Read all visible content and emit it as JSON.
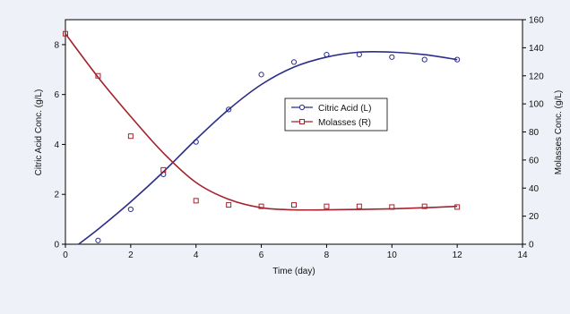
{
  "chart_data": {
    "type": "scatter",
    "title": "",
    "xlabel": "Time (day)",
    "ylabel_left": "Citric Acid Conc. (g/L)",
    "ylabel_right": "Molasses Conc. (g/L)",
    "xlim": [
      0,
      14
    ],
    "ylim_left": [
      0,
      9
    ],
    "ylim_right": [
      0,
      160
    ],
    "x_ticks": [
      0,
      2,
      4,
      6,
      8,
      10,
      12,
      14
    ],
    "y_ticks_left": [
      0,
      2,
      4,
      6,
      8
    ],
    "y_ticks_right": [
      0,
      20,
      40,
      60,
      80,
      100,
      120,
      140,
      160
    ],
    "grid": false,
    "legend_position": "center-right",
    "series": [
      {
        "name": "Citric Acid (L)",
        "axis": "left",
        "color": "#2b2d8a",
        "marker": "circle",
        "points": [
          [
            1,
            0.15
          ],
          [
            2,
            1.4
          ],
          [
            3,
            2.8
          ],
          [
            4,
            4.1
          ],
          [
            5,
            5.4
          ],
          [
            6,
            6.8
          ],
          [
            7,
            7.3
          ],
          [
            8,
            7.6
          ],
          [
            9,
            7.6
          ],
          [
            10,
            7.5
          ],
          [
            11,
            7.4
          ],
          [
            12,
            7.4
          ]
        ],
        "fit": [
          [
            0.4,
            0.0
          ],
          [
            1,
            0.6
          ],
          [
            2,
            1.7
          ],
          [
            3,
            2.9
          ],
          [
            4,
            4.2
          ],
          [
            5,
            5.4
          ],
          [
            6,
            6.4
          ],
          [
            7,
            7.1
          ],
          [
            8,
            7.5
          ],
          [
            9,
            7.7
          ],
          [
            10,
            7.7
          ],
          [
            11,
            7.6
          ],
          [
            12,
            7.4
          ]
        ]
      },
      {
        "name": "Molasses (R)",
        "axis": "right",
        "color": "#a3222c",
        "marker": "square",
        "points": [
          [
            0,
            150
          ],
          [
            1,
            120
          ],
          [
            2,
            77
          ],
          [
            3,
            53
          ],
          [
            4,
            31
          ],
          [
            5,
            28
          ],
          [
            6,
            27
          ],
          [
            7,
            28
          ],
          [
            8,
            27
          ],
          [
            9,
            27
          ],
          [
            10,
            26.5
          ],
          [
            11,
            27
          ],
          [
            12,
            26.5
          ]
        ],
        "fit": [
          [
            0,
            150
          ],
          [
            1,
            119
          ],
          [
            2,
            91
          ],
          [
            3,
            65
          ],
          [
            4,
            44
          ],
          [
            5,
            32
          ],
          [
            6,
            26
          ],
          [
            7,
            24.5
          ],
          [
            8,
            24.5
          ],
          [
            9,
            24.8
          ],
          [
            10,
            25.2
          ],
          [
            11,
            26
          ],
          [
            12,
            27
          ]
        ]
      }
    ]
  }
}
